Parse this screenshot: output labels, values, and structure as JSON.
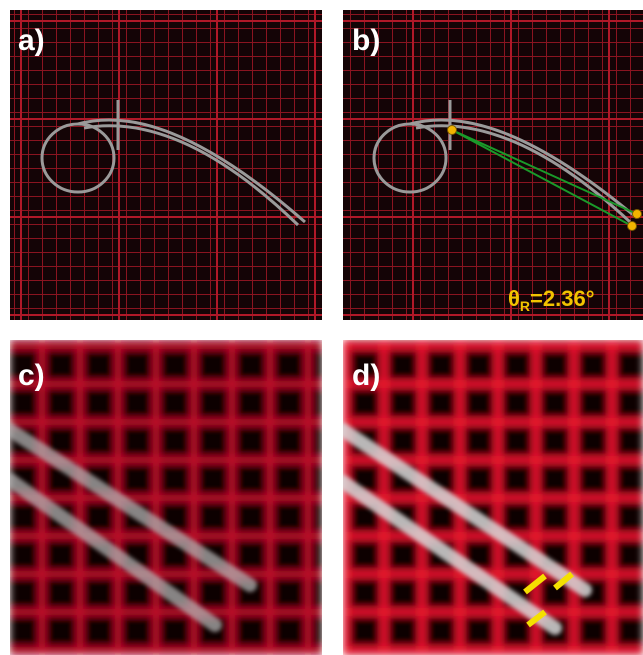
{
  "panels": [
    {
      "label": "a)"
    },
    {
      "label": "b)",
      "annotation": {
        "symbol": "θ",
        "subscript": "R",
        "text": "=2.36°"
      }
    },
    {
      "label": "c)"
    },
    {
      "label": "d)"
    }
  ]
}
